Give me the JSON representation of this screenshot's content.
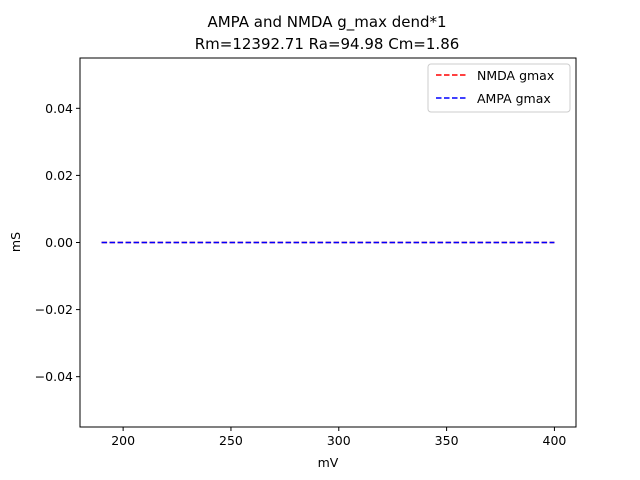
{
  "chart_data": {
    "type": "line",
    "title": "AMPA and NMDA g_max dend*1",
    "subtitle": "Rm=12392.71 Ra=94.98 Cm=1.86",
    "xlabel": "mV",
    "ylabel": "mS",
    "xlim": [
      180,
      410
    ],
    "ylim": [
      -0.055,
      0.055
    ],
    "x_ticks": [
      200,
      250,
      300,
      350,
      400
    ],
    "x_tick_labels": [
      "200",
      "250",
      "300",
      "350",
      "400"
    ],
    "y_ticks": [
      -0.04,
      -0.02,
      0.0,
      0.02,
      0.04
    ],
    "y_tick_labels": [
      "−0.04",
      "−0.02",
      "0.00",
      "0.02",
      "0.04"
    ],
    "grid": false,
    "legend_position": "upper right",
    "series": [
      {
        "name": "NMDA gmax",
        "color": "#ff0000",
        "linestyle": "dashed",
        "x": [
          190,
          400
        ],
        "y": [
          0.0,
          0.0
        ]
      },
      {
        "name": "AMPA gmax",
        "color": "#0000ff",
        "linestyle": "dashed",
        "x": [
          190,
          400
        ],
        "y": [
          0.0,
          0.0
        ]
      }
    ]
  }
}
